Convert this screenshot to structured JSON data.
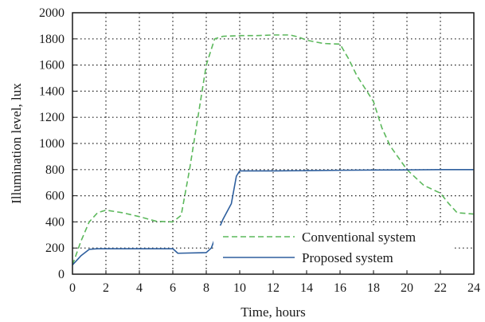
{
  "chart_data": {
    "type": "line",
    "xlabel": "Time, hours",
    "ylabel": "Illumination level, lux",
    "xlim": [
      0,
      24
    ],
    "ylim": [
      0,
      2000
    ],
    "xticks": [
      0,
      2,
      4,
      6,
      8,
      10,
      12,
      14,
      16,
      18,
      20,
      22,
      24
    ],
    "yticks": [
      0,
      200,
      400,
      600,
      800,
      1000,
      1200,
      1400,
      1600,
      1800,
      2000
    ],
    "grid": true,
    "grid_style": "dotted",
    "legend_position": "bottom-center",
    "series": [
      {
        "name": "Conventional system",
        "color": "#5cb85c",
        "dash": "dashed",
        "x": [
          0,
          0.5,
          1,
          1.5,
          2,
          2.5,
          3,
          4,
          5,
          6,
          6.5,
          7,
          7.5,
          8,
          8.5,
          9,
          10,
          11,
          12,
          13,
          13.5,
          14,
          15,
          16,
          16.5,
          17,
          17.5,
          18,
          18.5,
          19,
          20,
          21,
          22,
          22.5,
          23,
          24
        ],
        "y": [
          70,
          250,
          400,
          470,
          490,
          480,
          470,
          440,
          405,
          400,
          450,
          800,
          1200,
          1600,
          1800,
          1820,
          1825,
          1825,
          1830,
          1830,
          1815,
          1790,
          1765,
          1760,
          1650,
          1520,
          1420,
          1320,
          1120,
          980,
          800,
          680,
          620,
          540,
          470,
          460
        ]
      },
      {
        "name": "Proposed system",
        "color": "#2e5f9e",
        "dash": "solid",
        "x": [
          0,
          0.5,
          1,
          1.5,
          2,
          4,
          6,
          6.3,
          8,
          8.3,
          8.6,
          9,
          9.5,
          9.8,
          10,
          12,
          14,
          16,
          18,
          20,
          22,
          24
        ],
        "y": [
          70,
          140,
          190,
          195,
          195,
          195,
          195,
          160,
          165,
          200,
          300,
          420,
          540,
          750,
          790,
          790,
          792,
          795,
          797,
          798,
          800,
          800
        ]
      }
    ]
  }
}
